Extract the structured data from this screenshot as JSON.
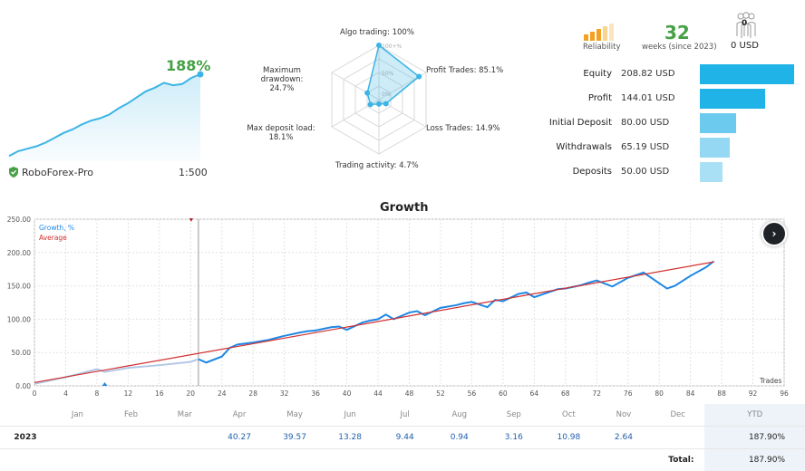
{
  "summary": {
    "gain_text": "188%",
    "broker": "RoboForex-Pro",
    "leverage": "1:500",
    "mini_curve": [
      2,
      6,
      8,
      10,
      13,
      17,
      21,
      24,
      28,
      31,
      33,
      36,
      41,
      45,
      50,
      55,
      58,
      62,
      60,
      61,
      66,
      69
    ],
    "accent_green": "#47a047",
    "curve_color": "#3cb4e5"
  },
  "radar": {
    "axes": [
      {
        "label": "Algo trading: 100%",
        "value": 100
      },
      {
        "label": "Profit Trades: 85.1%",
        "value": 85.1
      },
      {
        "label": "Loss Trades: 14.9%",
        "value": 14.9
      },
      {
        "label": "Trading activity: 4.7%",
        "value": 4.7
      },
      {
        "label": "Max deposit load:\n18.1%",
        "value": 18.1
      },
      {
        "label": "Maximum drawdown:\n24.7%",
        "value": 24.7
      }
    ],
    "scale_labels": [
      "100+%",
      "50%",
      "0%"
    ]
  },
  "stats": {
    "reliability_label": "Reliability",
    "weeks": "32",
    "weeks_label": "weeks (since 2023)",
    "subscribers_count": "0",
    "subscribers_value": "0 USD",
    "rows": [
      {
        "label": "Equity",
        "value": "208.82 USD",
        "amount": 208.82,
        "color": "#1fb3e8"
      },
      {
        "label": "Profit",
        "value": "144.01 USD",
        "amount": 144.01,
        "color": "#1fb3e8"
      },
      {
        "label": "Initial Deposit",
        "value": "80.00 USD",
        "amount": 80.0,
        "color": "#6ccaef"
      },
      {
        "label": "Withdrawals",
        "value": "65.19 USD",
        "amount": 65.19,
        "color": "#95d8f3"
      },
      {
        "label": "Deposits",
        "value": "50.00 USD",
        "amount": 50.0,
        "color": "#a9e0f6"
      }
    ]
  },
  "chart_data": {
    "type": "line",
    "title": "Growth",
    "xlabel": "Trades",
    "ylabel": "",
    "xlim": [
      0,
      96
    ],
    "ylim": [
      0,
      250
    ],
    "x_ticks": [
      0,
      4,
      8,
      12,
      16,
      20,
      24,
      28,
      32,
      36,
      40,
      44,
      48,
      52,
      56,
      60,
      64,
      68,
      72,
      76,
      80,
      84,
      88,
      92,
      96
    ],
    "y_ticks": [
      "0.00",
      "50.00",
      "100.00",
      "150.00",
      "200.00",
      "250.00"
    ],
    "grid": true,
    "legend": "top-left",
    "series": [
      {
        "name": "Growth, %",
        "color": "#1e88e5",
        "x": [
          0,
          4,
          8,
          9,
          12,
          16,
          20,
          21,
          22,
          24,
          25,
          26,
          28,
          30,
          31,
          32,
          34,
          35,
          36,
          38,
          39,
          40,
          42,
          43,
          44,
          45,
          46,
          48,
          49,
          50,
          52,
          54,
          55,
          56,
          58,
          59,
          60,
          62,
          63,
          64,
          66,
          67,
          68,
          70,
          71,
          72,
          74,
          76,
          78,
          80,
          81,
          82,
          84,
          86,
          87
        ],
        "y": [
          3,
          13,
          25,
          21,
          27,
          31,
          36,
          40,
          35,
          44,
          57,
          62,
          65,
          69,
          72,
          75,
          80,
          82,
          83,
          88,
          89,
          84,
          95,
          98,
          100,
          107,
          100,
          110,
          112,
          106,
          117,
          121,
          124,
          126,
          118,
          129,
          127,
          138,
          140,
          133,
          141,
          145,
          146,
          151,
          155,
          158,
          149,
          162,
          170,
          154,
          146,
          150,
          165,
          178,
          187
        ]
      },
      {
        "name": "Average",
        "color": "#d32f2f",
        "x": [
          0,
          87
        ],
        "y": [
          5,
          186
        ]
      }
    ],
    "annotations": {
      "balance_marker_x": 21
    }
  },
  "table": {
    "months": [
      "Jan",
      "Feb",
      "Mar",
      "Apr",
      "May",
      "Jun",
      "Jul",
      "Aug",
      "Sep",
      "Oct",
      "Nov",
      "Dec"
    ],
    "ytd_header": "YTD",
    "year": "2023",
    "values": [
      "",
      "",
      "",
      "40.27",
      "39.57",
      "13.28",
      "9.44",
      "0.94",
      "3.16",
      "10.98",
      "2.64",
      ""
    ],
    "ytd": "187.90%",
    "total_label": "Total:",
    "total": "187.90%"
  }
}
